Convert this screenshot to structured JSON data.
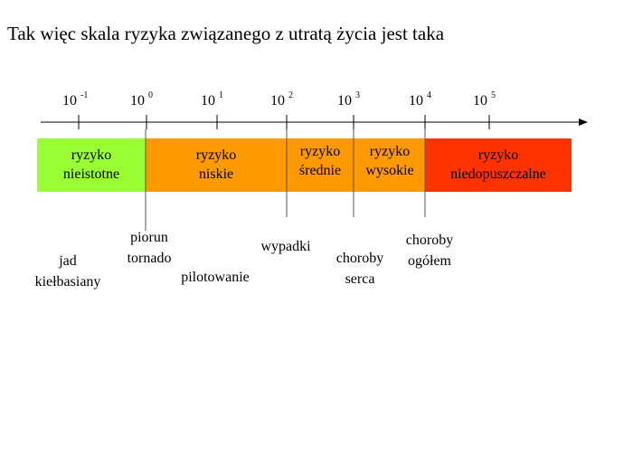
{
  "title": "Tak więc skala ryzyka związanego z utratą życia jest taka",
  "ticks": [
    {
      "base": "10",
      "exp": "-1"
    },
    {
      "base": "10",
      "exp": "0"
    },
    {
      "base": "10",
      "exp": "1"
    },
    {
      "base": "10",
      "exp": "2"
    },
    {
      "base": "10",
      "exp": "3"
    },
    {
      "base": "10",
      "exp": "4"
    },
    {
      "base": "10",
      "exp": "5"
    }
  ],
  "zones": [
    {
      "lines": [
        "ryzyko",
        "nieistotne"
      ]
    },
    {
      "lines": [
        "ryzyko",
        "niskie"
      ]
    },
    {
      "lines": [
        "ryzyko",
        "średnie"
      ]
    },
    {
      "lines": [
        "ryzyko",
        "wysokie"
      ]
    },
    {
      "lines": [
        "ryzyko",
        "niedopuszczalne"
      ]
    }
  ],
  "examples": [
    {
      "lines": [
        "jad",
        "kiełbasiany"
      ]
    },
    {
      "lines": [
        "piorun",
        "tornado"
      ]
    },
    {
      "lines": [
        "pilotowanie"
      ]
    },
    {
      "lines": [
        "wypadki"
      ]
    },
    {
      "lines": [
        "choroby",
        "serca"
      ]
    },
    {
      "lines": [
        "choroby",
        "ogółem"
      ]
    }
  ]
}
